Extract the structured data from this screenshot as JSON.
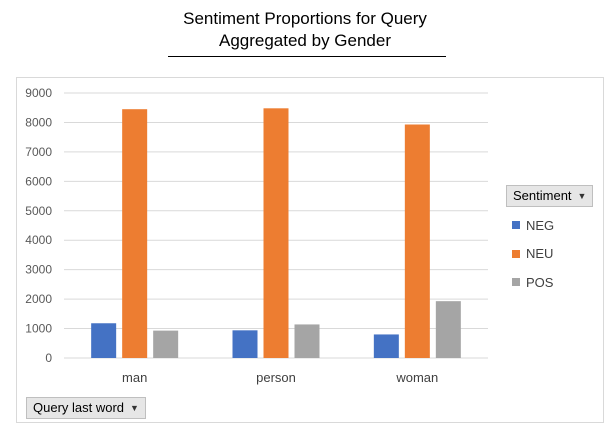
{
  "chart_data": {
    "type": "bar",
    "title": "Sentiment Proportions for Query\nAggregated by Gender",
    "categories": [
      "man",
      "person",
      "woman"
    ],
    "series": [
      {
        "name": "NEG",
        "color": "#4472C4",
        "values": [
          1180,
          940,
          800
        ]
      },
      {
        "name": "NEU",
        "color": "#ED7D31",
        "values": [
          8450,
          8480,
          7930
        ]
      },
      {
        "name": "POS",
        "color": "#A5A5A5",
        "values": [
          930,
          1140,
          1930
        ]
      }
    ],
    "ylim": [
      0,
      9000
    ],
    "yticks": [
      0,
      1000,
      2000,
      3000,
      4000,
      5000,
      6000,
      7000,
      8000,
      9000
    ],
    "grid": true,
    "legend_placement": "right",
    "legend_title": "Sentiment",
    "axis_field_button": "Query last word"
  }
}
